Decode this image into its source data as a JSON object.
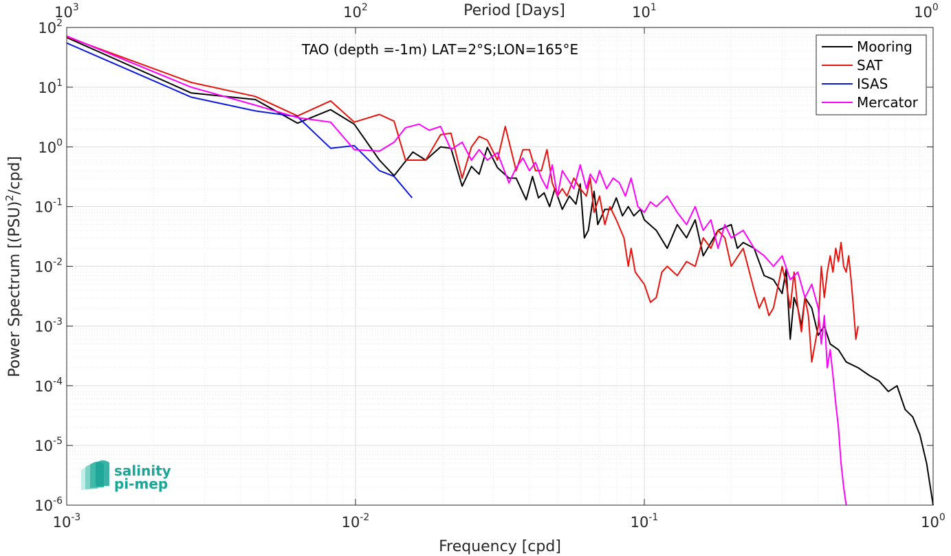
{
  "chart_data": {
    "type": "line",
    "title": "TAO (depth =-1m) LAT=2°S;LON=165°E",
    "xlabel": "Frequency [cpd]",
    "ylabel": "Power Spectrum [(PSU)²/cpd]",
    "ylabel_parts": {
      "pre": "Power Spectrum [(PSU)",
      "sup": "2",
      "post": "/cpd]"
    },
    "top_xlabel": "Period [Days]",
    "x_scale": "log",
    "y_scale": "log",
    "xlim": [
      0.001,
      1
    ],
    "ylim": [
      1e-06,
      100
    ],
    "x_ticks": [
      {
        "base": "10",
        "exp": "-3"
      },
      {
        "base": "10",
        "exp": "-2"
      },
      {
        "base": "10",
        "exp": "-1"
      },
      {
        "base": "10",
        "exp": "0"
      }
    ],
    "top_ticks": [
      {
        "base": "10",
        "exp": "3"
      },
      {
        "base": "10",
        "exp": "2"
      },
      {
        "base": "10",
        "exp": "1"
      },
      {
        "base": "10",
        "exp": "0"
      }
    ],
    "y_ticks": [
      {
        "base": "10",
        "exp": "-6"
      },
      {
        "base": "10",
        "exp": "-5"
      },
      {
        "base": "10",
        "exp": "-4"
      },
      {
        "base": "10",
        "exp": "-3"
      },
      {
        "base": "10",
        "exp": "-2"
      },
      {
        "base": "10",
        "exp": "-1"
      },
      {
        "base": "10",
        "exp": "0"
      },
      {
        "base": "10",
        "exp": "1"
      },
      {
        "base": "10",
        "exp": "2"
      }
    ],
    "grid": true,
    "legend_position": "top-right",
    "series": [
      {
        "name": "Mooring",
        "color": "#000000",
        "points": [
          [
            0.001,
            68
          ],
          [
            0.0027,
            8
          ],
          [
            0.0045,
            6.2
          ],
          [
            0.0063,
            2.5
          ],
          [
            0.0082,
            4.2
          ],
          [
            0.0099,
            2.4
          ],
          [
            0.0121,
            0.6
          ],
          [
            0.0136,
            0.33
          ],
          [
            0.0158,
            0.82
          ],
          [
            0.0175,
            0.6
          ],
          [
            0.0197,
            1.0
          ],
          [
            0.0214,
            0.95
          ],
          [
            0.0234,
            0.22
          ],
          [
            0.0252,
            0.47
          ],
          [
            0.0268,
            0.35
          ],
          [
            0.0286,
            0.98
          ],
          [
            0.031,
            0.45
          ],
          [
            0.034,
            0.3
          ],
          [
            0.036,
            0.3
          ],
          [
            0.039,
            0.13
          ],
          [
            0.041,
            0.32
          ],
          [
            0.043,
            0.14
          ],
          [
            0.045,
            0.17
          ],
          [
            0.047,
            0.1
          ],
          [
            0.049,
            0.2
          ],
          [
            0.052,
            0.09
          ],
          [
            0.055,
            0.15
          ],
          [
            0.058,
            0.11
          ],
          [
            0.06,
            0.24
          ],
          [
            0.062,
            0.03
          ],
          [
            0.064,
            0.04
          ],
          [
            0.067,
            0.18
          ],
          [
            0.069,
            0.05
          ],
          [
            0.073,
            0.09
          ],
          [
            0.077,
            0.09
          ],
          [
            0.08,
            0.14
          ],
          [
            0.084,
            0.07
          ],
          [
            0.088,
            0.1
          ],
          [
            0.092,
            0.07
          ],
          [
            0.097,
            0.09
          ],
          [
            0.1,
            0.06
          ],
          [
            0.11,
            0.04
          ],
          [
            0.12,
            0.02
          ],
          [
            0.13,
            0.05
          ],
          [
            0.14,
            0.03
          ],
          [
            0.15,
            0.06
          ],
          [
            0.16,
            0.015
          ],
          [
            0.18,
            0.04
          ],
          [
            0.2,
            0.05
          ],
          [
            0.21,
            0.02
          ],
          [
            0.22,
            0.025
          ],
          [
            0.24,
            0.02
          ],
          [
            0.26,
            0.007
          ],
          [
            0.28,
            0.006
          ],
          [
            0.3,
            0.0035
          ],
          [
            0.31,
            0.009
          ],
          [
            0.32,
            0.0006
          ],
          [
            0.33,
            0.003
          ],
          [
            0.34,
            0.002
          ],
          [
            0.35,
            0.001
          ],
          [
            0.36,
            0.003
          ],
          [
            0.38,
            0.002
          ],
          [
            0.4,
            0.0007
          ],
          [
            0.42,
            0.001
          ],
          [
            0.44,
            0.0005
          ],
          [
            0.47,
            0.0004
          ],
          [
            0.5,
            0.00025
          ],
          [
            0.55,
            0.0002
          ],
          [
            0.6,
            0.00015
          ],
          [
            0.65,
            0.00012
          ],
          [
            0.7,
            8e-05
          ],
          [
            0.75,
            0.0001
          ],
          [
            0.8,
            4e-05
          ],
          [
            0.85,
            3e-05
          ],
          [
            0.9,
            1.5e-05
          ],
          [
            0.95,
            5e-06
          ],
          [
            1.0,
            1e-06
          ]
        ]
      },
      {
        "name": "SAT",
        "color": "#e8120c",
        "points": [
          [
            0.001,
            70
          ],
          [
            0.0027,
            12
          ],
          [
            0.0045,
            7
          ],
          [
            0.0063,
            3.3
          ],
          [
            0.0082,
            5.9
          ],
          [
            0.0099,
            2.6
          ],
          [
            0.0121,
            3.5
          ],
          [
            0.0136,
            2.7
          ],
          [
            0.0149,
            0.6
          ],
          [
            0.0175,
            0.6
          ],
          [
            0.0197,
            1.6
          ],
          [
            0.0214,
            1.7
          ],
          [
            0.0234,
            0.3
          ],
          [
            0.0252,
            1.0
          ],
          [
            0.0268,
            1.5
          ],
          [
            0.0286,
            1.3
          ],
          [
            0.031,
            0.6
          ],
          [
            0.033,
            2.2
          ],
          [
            0.036,
            0.4
          ],
          [
            0.038,
            0.9
          ],
          [
            0.04,
            0.9
          ],
          [
            0.042,
            0.4
          ],
          [
            0.044,
            0.4
          ],
          [
            0.046,
            0.9
          ],
          [
            0.048,
            0.25
          ],
          [
            0.05,
            0.15
          ],
          [
            0.052,
            0.2
          ],
          [
            0.054,
            0.15
          ],
          [
            0.057,
            0.3
          ],
          [
            0.06,
            0.2
          ],
          [
            0.063,
            0.15
          ],
          [
            0.065,
            0.3
          ],
          [
            0.067,
            0.08
          ],
          [
            0.07,
            0.15
          ],
          [
            0.073,
            0.05
          ],
          [
            0.076,
            0.1
          ],
          [
            0.08,
            0.06
          ],
          [
            0.085,
            0.03
          ],
          [
            0.088,
            0.01
          ],
          [
            0.09,
            0.02
          ],
          [
            0.093,
            0.008
          ],
          [
            0.1,
            0.005
          ],
          [
            0.105,
            0.0025
          ],
          [
            0.11,
            0.003
          ],
          [
            0.115,
            0.008
          ],
          [
            0.12,
            0.01
          ],
          [
            0.13,
            0.007
          ],
          [
            0.14,
            0.012
          ],
          [
            0.15,
            0.01
          ],
          [
            0.16,
            0.03
          ],
          [
            0.17,
            0.02
          ],
          [
            0.18,
            0.04
          ],
          [
            0.19,
            0.03
          ],
          [
            0.2,
            0.01
          ],
          [
            0.22,
            0.02
          ],
          [
            0.24,
            0.004
          ],
          [
            0.25,
            0.002
          ],
          [
            0.26,
            0.003
          ],
          [
            0.27,
            0.0015
          ],
          [
            0.28,
            0.002
          ],
          [
            0.3,
            0.01
          ],
          [
            0.31,
            0.005
          ],
          [
            0.32,
            0.002
          ],
          [
            0.33,
            0.008
          ],
          [
            0.34,
            0.002
          ],
          [
            0.35,
            0.0008
          ],
          [
            0.36,
            0.003
          ],
          [
            0.37,
            0.0015
          ],
          [
            0.38,
            0.00025
          ],
          [
            0.4,
            0.001
          ],
          [
            0.41,
            0.01
          ],
          [
            0.42,
            0.003
          ],
          [
            0.43,
            0.008
          ],
          [
            0.44,
            0.015
          ],
          [
            0.45,
            0.008
          ],
          [
            0.46,
            0.02
          ],
          [
            0.47,
            0.012
          ],
          [
            0.48,
            0.025
          ],
          [
            0.49,
            0.01
          ],
          [
            0.5,
            0.008
          ],
          [
            0.51,
            0.015
          ],
          [
            0.52,
            0.006
          ],
          [
            0.53,
            0.002
          ],
          [
            0.54,
            0.0006
          ],
          [
            0.55,
            0.001
          ]
        ]
      },
      {
        "name": "ISAS",
        "color": "#0c17e0",
        "points": [
          [
            0.001,
            55
          ],
          [
            0.0027,
            6.8
          ],
          [
            0.0045,
            4
          ],
          [
            0.0063,
            3.2
          ],
          [
            0.0082,
            0.95
          ],
          [
            0.0099,
            1.05
          ],
          [
            0.0121,
            0.4
          ],
          [
            0.0136,
            0.32
          ],
          [
            0.0157,
            0.14
          ]
        ]
      },
      {
        "name": "Mercator",
        "color": "#ff00ff",
        "points": [
          [
            0.001,
            72
          ],
          [
            0.0027,
            10
          ],
          [
            0.0045,
            5
          ],
          [
            0.0063,
            3.1
          ],
          [
            0.0082,
            2.6
          ],
          [
            0.0099,
            0.9
          ],
          [
            0.0121,
            0.85
          ],
          [
            0.0136,
            1.2
          ],
          [
            0.0149,
            2.1
          ],
          [
            0.0166,
            2.4
          ],
          [
            0.018,
            1.9
          ],
          [
            0.0197,
            2.2
          ],
          [
            0.0214,
            0.9
          ],
          [
            0.0234,
            1.2
          ],
          [
            0.0252,
            0.6
          ],
          [
            0.0268,
            0.9
          ],
          [
            0.0286,
            0.6
          ],
          [
            0.031,
            0.8
          ],
          [
            0.034,
            0.25
          ],
          [
            0.036,
            0.45
          ],
          [
            0.038,
            0.65
          ],
          [
            0.04,
            0.4
          ],
          [
            0.042,
            0.55
          ],
          [
            0.044,
            0.3
          ],
          [
            0.046,
            0.2
          ],
          [
            0.048,
            0.5
          ],
          [
            0.05,
            0.15
          ],
          [
            0.052,
            0.4
          ],
          [
            0.054,
            0.3
          ],
          [
            0.057,
            0.2
          ],
          [
            0.06,
            0.5
          ],
          [
            0.063,
            0.2
          ],
          [
            0.065,
            0.35
          ],
          [
            0.068,
            0.25
          ],
          [
            0.07,
            0.4
          ],
          [
            0.074,
            0.2
          ],
          [
            0.078,
            0.3
          ],
          [
            0.082,
            0.25
          ],
          [
            0.086,
            0.15
          ],
          [
            0.09,
            0.3
          ],
          [
            0.095,
            0.1
          ],
          [
            0.1,
            0.08
          ],
          [
            0.105,
            0.12
          ],
          [
            0.11,
            0.1
          ],
          [
            0.12,
            0.15
          ],
          [
            0.13,
            0.08
          ],
          [
            0.14,
            0.05
          ],
          [
            0.15,
            0.1
          ],
          [
            0.16,
            0.04
          ],
          [
            0.17,
            0.06
          ],
          [
            0.18,
            0.02
          ],
          [
            0.19,
            0.05
          ],
          [
            0.2,
            0.03
          ],
          [
            0.22,
            0.04
          ],
          [
            0.24,
            0.02
          ],
          [
            0.26,
            0.015
          ],
          [
            0.28,
            0.01
          ],
          [
            0.3,
            0.015
          ],
          [
            0.32,
            0.006
          ],
          [
            0.34,
            0.008
          ],
          [
            0.36,
            0.003
          ],
          [
            0.38,
            0.005
          ],
          [
            0.4,
            0.002
          ],
          [
            0.41,
            0.0005
          ],
          [
            0.42,
            0.0015
          ],
          [
            0.43,
            0.0002
          ],
          [
            0.44,
            0.0004
          ],
          [
            0.45,
            0.00015
          ],
          [
            0.46,
            5e-05
          ],
          [
            0.47,
            2e-05
          ],
          [
            0.48,
            5e-06
          ],
          [
            0.49,
            2e-06
          ],
          [
            0.5,
            1e-06
          ]
        ]
      }
    ]
  },
  "logo": {
    "line1": "salinity",
    "line2": "pi-mep",
    "color": "#1aa596"
  }
}
